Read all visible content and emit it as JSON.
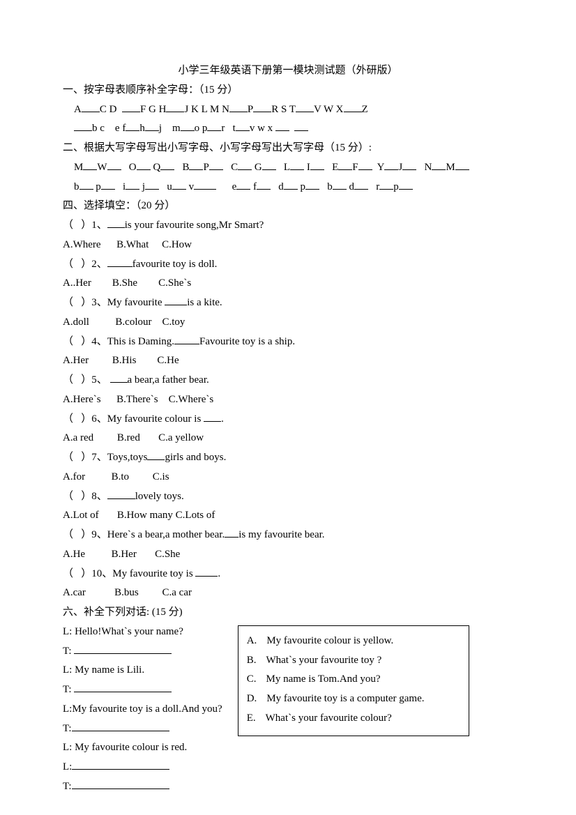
{
  "title": "小学三年级英语下册第一模块测试题（外研版）",
  "s1": {
    "heading": "一、按字母表顺序补全字母：（15 分）",
    "row1": {
      "t1": "A",
      "t2": "C D",
      "t3": "F G H",
      "t4": "J K L M N",
      "t5": "P",
      "t6": "R S T",
      "t7": "V W X",
      "t8": "Z"
    },
    "row2": {
      "t1": "b c",
      "t2": "e f",
      "t3": "h",
      "t4": "j",
      "t5": "m",
      "t6": "o p",
      "t7": "r",
      "t8": "t",
      "t9": "v w x"
    }
  },
  "s2": {
    "heading": "二、根据大写字母写出小写字母、小写字母写出大写字母（15 分）:",
    "row1": {
      "p1a": "M",
      "p1b": "W",
      "p2a": "O",
      "p2b": "Q",
      "p3a": "B",
      "p3b": "P",
      "p4a": "C",
      "p4b": "G",
      "p5a": "L",
      "p5b": "I",
      "p6a": "E",
      "p6b": "F",
      "p7a": "Y",
      "p7b": "J",
      "p8a": "N",
      "p8b": "M"
    },
    "row2": {
      "p1a": "b",
      "p1b": "p",
      "p2a": "i",
      "p2b": "j",
      "p3a": "u",
      "p3b": "v",
      "p4a": "e",
      "p4b": "f",
      "p5a": "d",
      "p5b": "p",
      "p6a": "b",
      "p6b": "d",
      "p7a": "r",
      "p7b": "p"
    }
  },
  "s4": {
    "heading": "四、选择填空：（20 分）",
    "q1": {
      "pre": "（   ）1、",
      "after": "is your favourite song,Mr Smart?",
      "a": "A.Where",
      "b": "B.What",
      "c": "C.How"
    },
    "q2": {
      "pre": "（   ）2、",
      "after": "favourite toy is doll.",
      "a": "A..Her",
      "b": "B.She",
      "c": "C.She`s"
    },
    "q3": {
      "pre": "（   ）3、My favourite ",
      "after": "is a kite.",
      "a": "A.doll",
      "b": "B.colour",
      "c": "C.toy"
    },
    "q4": {
      "pre": "（   ）4、This is Daming.",
      "after": "Favourite toy is a ship.",
      "a": "A.Her",
      "b": "B.His",
      "c": "C.He"
    },
    "q5": {
      "pre": "（   ）5、 ",
      "after": "a bear,a father bear.",
      "a": "A.Here`s",
      "b": "B.There`s",
      "c": "C.Where`s"
    },
    "q6": {
      "pre": "（   ）6、My favourite colour is ",
      "after": ".",
      "a": "A.a red",
      "b": "B.red",
      "c": "C.a yellow"
    },
    "q7": {
      "pre": "（   ）7、Toys,toys",
      "after": "girls and boys.",
      "a": "A.for",
      "b": "B.to",
      "c": "C.is"
    },
    "q8": {
      "pre": "（   ）8、",
      "after": "lovely toys.",
      "a": "A.Lot of",
      "b": "B.How many",
      "c": "C.Lots of"
    },
    "q9": {
      "pre": "（   ）9、Here`s a bear,a mother bear.",
      "after": "is my favourite bear.",
      "a": "A.He",
      "b": "B.Her",
      "c": "C.She"
    },
    "q10": {
      "pre": "（   ）10、My favourite toy is ",
      "after": ".",
      "a": "A.car",
      "b": "B.bus",
      "c": "C.a car"
    }
  },
  "s6": {
    "heading": "六、补全下列对话: (15 分)",
    "d1": "L: Hello!What`s your name?",
    "d2": "T: ",
    "d3": "L: My name is Lili.",
    "d4": "T: ",
    "d5": "L:My favourite toy is a doll.And you?",
    "d6": "T:",
    "d7": "L: My favourite colour is red.",
    "d8": "L:",
    "d9": "T:",
    "answers": {
      "a": {
        "label": "A.",
        "text": "My favourite colour is yellow."
      },
      "b": {
        "label": "B.",
        "text": "What`s your favourite toy ?"
      },
      "c": {
        "label": "C.",
        "text": "My name is Tom.And you?"
      },
      "d": {
        "label": "D.",
        "text": "My favourite toy is a computer game."
      },
      "e": {
        "label": "E.",
        "text": "What`s your favourite colour?"
      }
    }
  }
}
